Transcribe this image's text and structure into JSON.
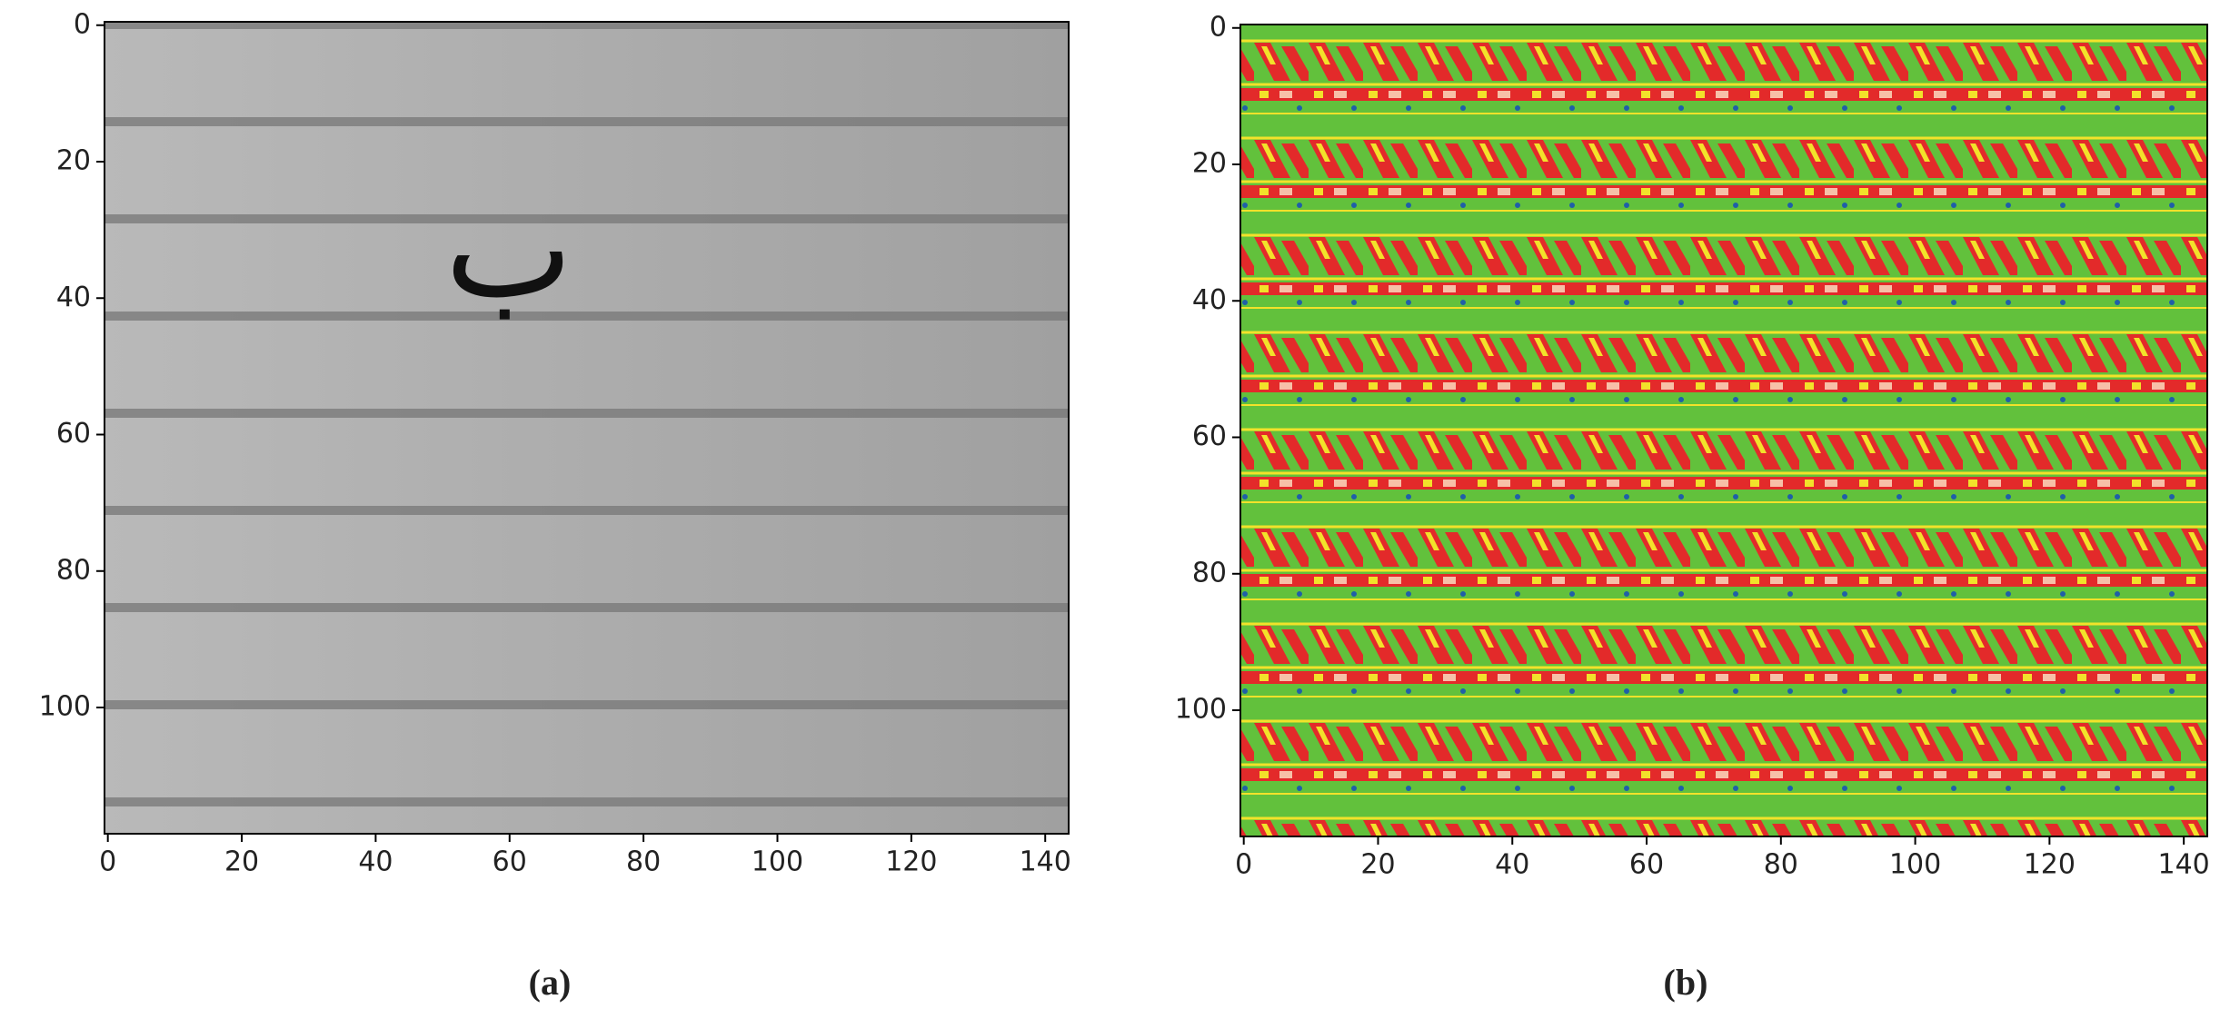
{
  "chart_data": [
    {
      "type": "image",
      "caption": "(a)",
      "image_text": "ب",
      "xlim": [
        -0.5,
        143.5
      ],
      "ylim": [
        118.5,
        -0.5
      ],
      "xticks": [
        0,
        20,
        40,
        60,
        80,
        100,
        120,
        140
      ],
      "yticks": [
        0,
        20,
        40,
        60,
        80,
        100
      ]
    },
    {
      "type": "image",
      "caption": "(b)",
      "xlim": [
        -0.5,
        143.5
      ],
      "ylim": [
        118.5,
        -0.5
      ],
      "xticks": [
        0,
        20,
        40,
        60,
        80,
        100,
        120,
        140
      ],
      "yticks": [
        0,
        20,
        40,
        60,
        80,
        100
      ]
    }
  ]
}
